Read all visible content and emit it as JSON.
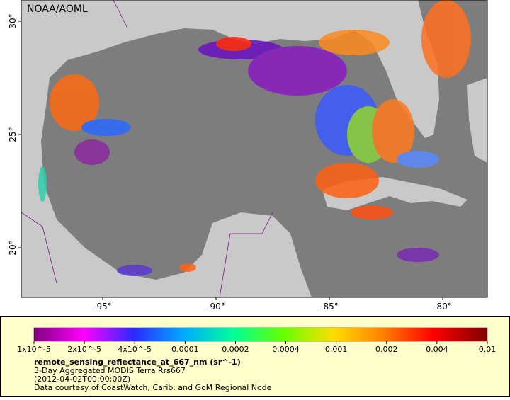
{
  "map": {
    "credit": "NOAA/AOML",
    "lon_ticks": [
      {
        "value": -95,
        "label": "-95°"
      },
      {
        "value": -90,
        "label": "-90°"
      },
      {
        "value": -85,
        "label": "-85°"
      },
      {
        "value": -80,
        "label": "-80°"
      }
    ],
    "lat_ticks": [
      {
        "value": 30,
        "label": "30°"
      },
      {
        "value": 25,
        "label": "25°"
      },
      {
        "value": 20,
        "label": "20°"
      }
    ],
    "colorbar": {
      "ticks": [
        "1x10^-5",
        "2x10^-5",
        "4x10^-5",
        "0.0001",
        "0.0002",
        "0.0004",
        "0.001",
        "0.002",
        "0.004",
        "0.01"
      ]
    },
    "legend": {
      "variable": "remote_sensing_reflectance_at_667_nm (sr^-1)",
      "lines": [
        "3-Day Aggregated MODIS Terra Rrs667",
        "(2012-04-02T00:00:00Z)",
        "Data courtesy of CoastWatch, Carib. and GoM Regional Node"
      ]
    }
  }
}
